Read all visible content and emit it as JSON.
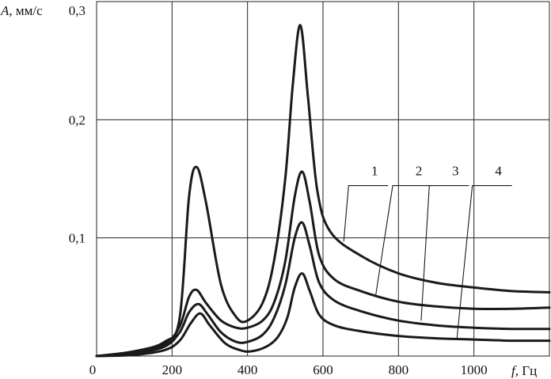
{
  "chart_data": {
    "type": "line",
    "xlabel_var": "f",
    "xlabel_unit": ", Гц",
    "ylabel_var": "A",
    "ylabel_unit": ", мм/с",
    "xlim": [
      0,
      1200
    ],
    "ylim": [
      0,
      0.3
    ],
    "grid": true,
    "x_ticks": [
      {
        "value": 0,
        "label": "0"
      },
      {
        "value": 200,
        "label": "200"
      },
      {
        "value": 400,
        "label": "400"
      },
      {
        "value": 600,
        "label": "600"
      },
      {
        "value": 800,
        "label": "800"
      },
      {
        "value": 1000,
        "label": "1000"
      }
    ],
    "y_ticks": [
      {
        "value": 0.1,
        "label": "0,1"
      },
      {
        "value": 0.2,
        "label": "0,2"
      },
      {
        "value": 0.3,
        "label": "0,3"
      }
    ],
    "x_grid": [
      200,
      400,
      600,
      800,
      1000
    ],
    "y_grid": [
      0.1,
      0.2,
      0.3
    ],
    "series": [
      {
        "label": "1",
        "label_at": [
          737,
          0.157
        ],
        "leader_to": [
          655,
          0.097
        ],
        "points": [
          [
            0,
            0
          ],
          [
            100,
            0.004
          ],
          [
            180,
            0.012
          ],
          [
            220,
            0.032
          ],
          [
            245,
            0.135
          ],
          [
            265,
            0.16
          ],
          [
            290,
            0.13
          ],
          [
            330,
            0.06
          ],
          [
            370,
            0.033
          ],
          [
            400,
            0.03
          ],
          [
            440,
            0.045
          ],
          [
            470,
            0.08
          ],
          [
            500,
            0.15
          ],
          [
            520,
            0.23
          ],
          [
            540,
            0.28
          ],
          [
            560,
            0.22
          ],
          [
            585,
            0.14
          ],
          [
            620,
            0.105
          ],
          [
            700,
            0.085
          ],
          [
            800,
            0.07
          ],
          [
            900,
            0.062
          ],
          [
            1000,
            0.058
          ],
          [
            1100,
            0.055
          ],
          [
            1200,
            0.054
          ]
        ]
      },
      {
        "label": "2",
        "label_at": [
          854,
          0.157
        ],
        "leader_to": [
          740,
          0.052
        ],
        "points": [
          [
            0,
            0
          ],
          [
            100,
            0.003
          ],
          [
            180,
            0.01
          ],
          [
            220,
            0.025
          ],
          [
            245,
            0.05
          ],
          [
            265,
            0.056
          ],
          [
            290,
            0.045
          ],
          [
            330,
            0.03
          ],
          [
            370,
            0.024
          ],
          [
            400,
            0.024
          ],
          [
            440,
            0.03
          ],
          [
            470,
            0.045
          ],
          [
            500,
            0.08
          ],
          [
            525,
            0.135
          ],
          [
            545,
            0.156
          ],
          [
            565,
            0.13
          ],
          [
            590,
            0.085
          ],
          [
            630,
            0.065
          ],
          [
            700,
            0.055
          ],
          [
            800,
            0.046
          ],
          [
            900,
            0.042
          ],
          [
            1000,
            0.04
          ],
          [
            1100,
            0.04
          ],
          [
            1200,
            0.041
          ]
        ]
      },
      {
        "label": "3",
        "label_at": [
          951,
          0.157
        ],
        "leader_to": [
          860,
          0.03
        ],
        "points": [
          [
            0,
            0
          ],
          [
            100,
            0.002
          ],
          [
            180,
            0.008
          ],
          [
            220,
            0.02
          ],
          [
            245,
            0.037
          ],
          [
            270,
            0.044
          ],
          [
            295,
            0.035
          ],
          [
            330,
            0.02
          ],
          [
            370,
            0.012
          ],
          [
            400,
            0.012
          ],
          [
            440,
            0.018
          ],
          [
            470,
            0.032
          ],
          [
            500,
            0.06
          ],
          [
            525,
            0.1
          ],
          [
            545,
            0.113
          ],
          [
            565,
            0.093
          ],
          [
            590,
            0.062
          ],
          [
            630,
            0.047
          ],
          [
            700,
            0.038
          ],
          [
            800,
            0.03
          ],
          [
            900,
            0.026
          ],
          [
            1000,
            0.024
          ],
          [
            1100,
            0.023
          ],
          [
            1200,
            0.023
          ]
        ]
      },
      {
        "label": "4",
        "label_at": [
          1065,
          0.157
        ],
        "leader_to": [
          955,
          0.015
        ],
        "points": [
          [
            0,
            0
          ],
          [
            100,
            0.001
          ],
          [
            180,
            0.005
          ],
          [
            220,
            0.013
          ],
          [
            250,
            0.028
          ],
          [
            275,
            0.036
          ],
          [
            300,
            0.026
          ],
          [
            340,
            0.011
          ],
          [
            380,
            0.005
          ],
          [
            410,
            0.004
          ],
          [
            450,
            0.008
          ],
          [
            480,
            0.016
          ],
          [
            505,
            0.032
          ],
          [
            525,
            0.058
          ],
          [
            545,
            0.07
          ],
          [
            565,
            0.055
          ],
          [
            590,
            0.035
          ],
          [
            630,
            0.026
          ],
          [
            700,
            0.021
          ],
          [
            800,
            0.017
          ],
          [
            900,
            0.015
          ],
          [
            1000,
            0.014
          ],
          [
            1100,
            0.013
          ],
          [
            1200,
            0.013
          ]
        ]
      }
    ]
  }
}
